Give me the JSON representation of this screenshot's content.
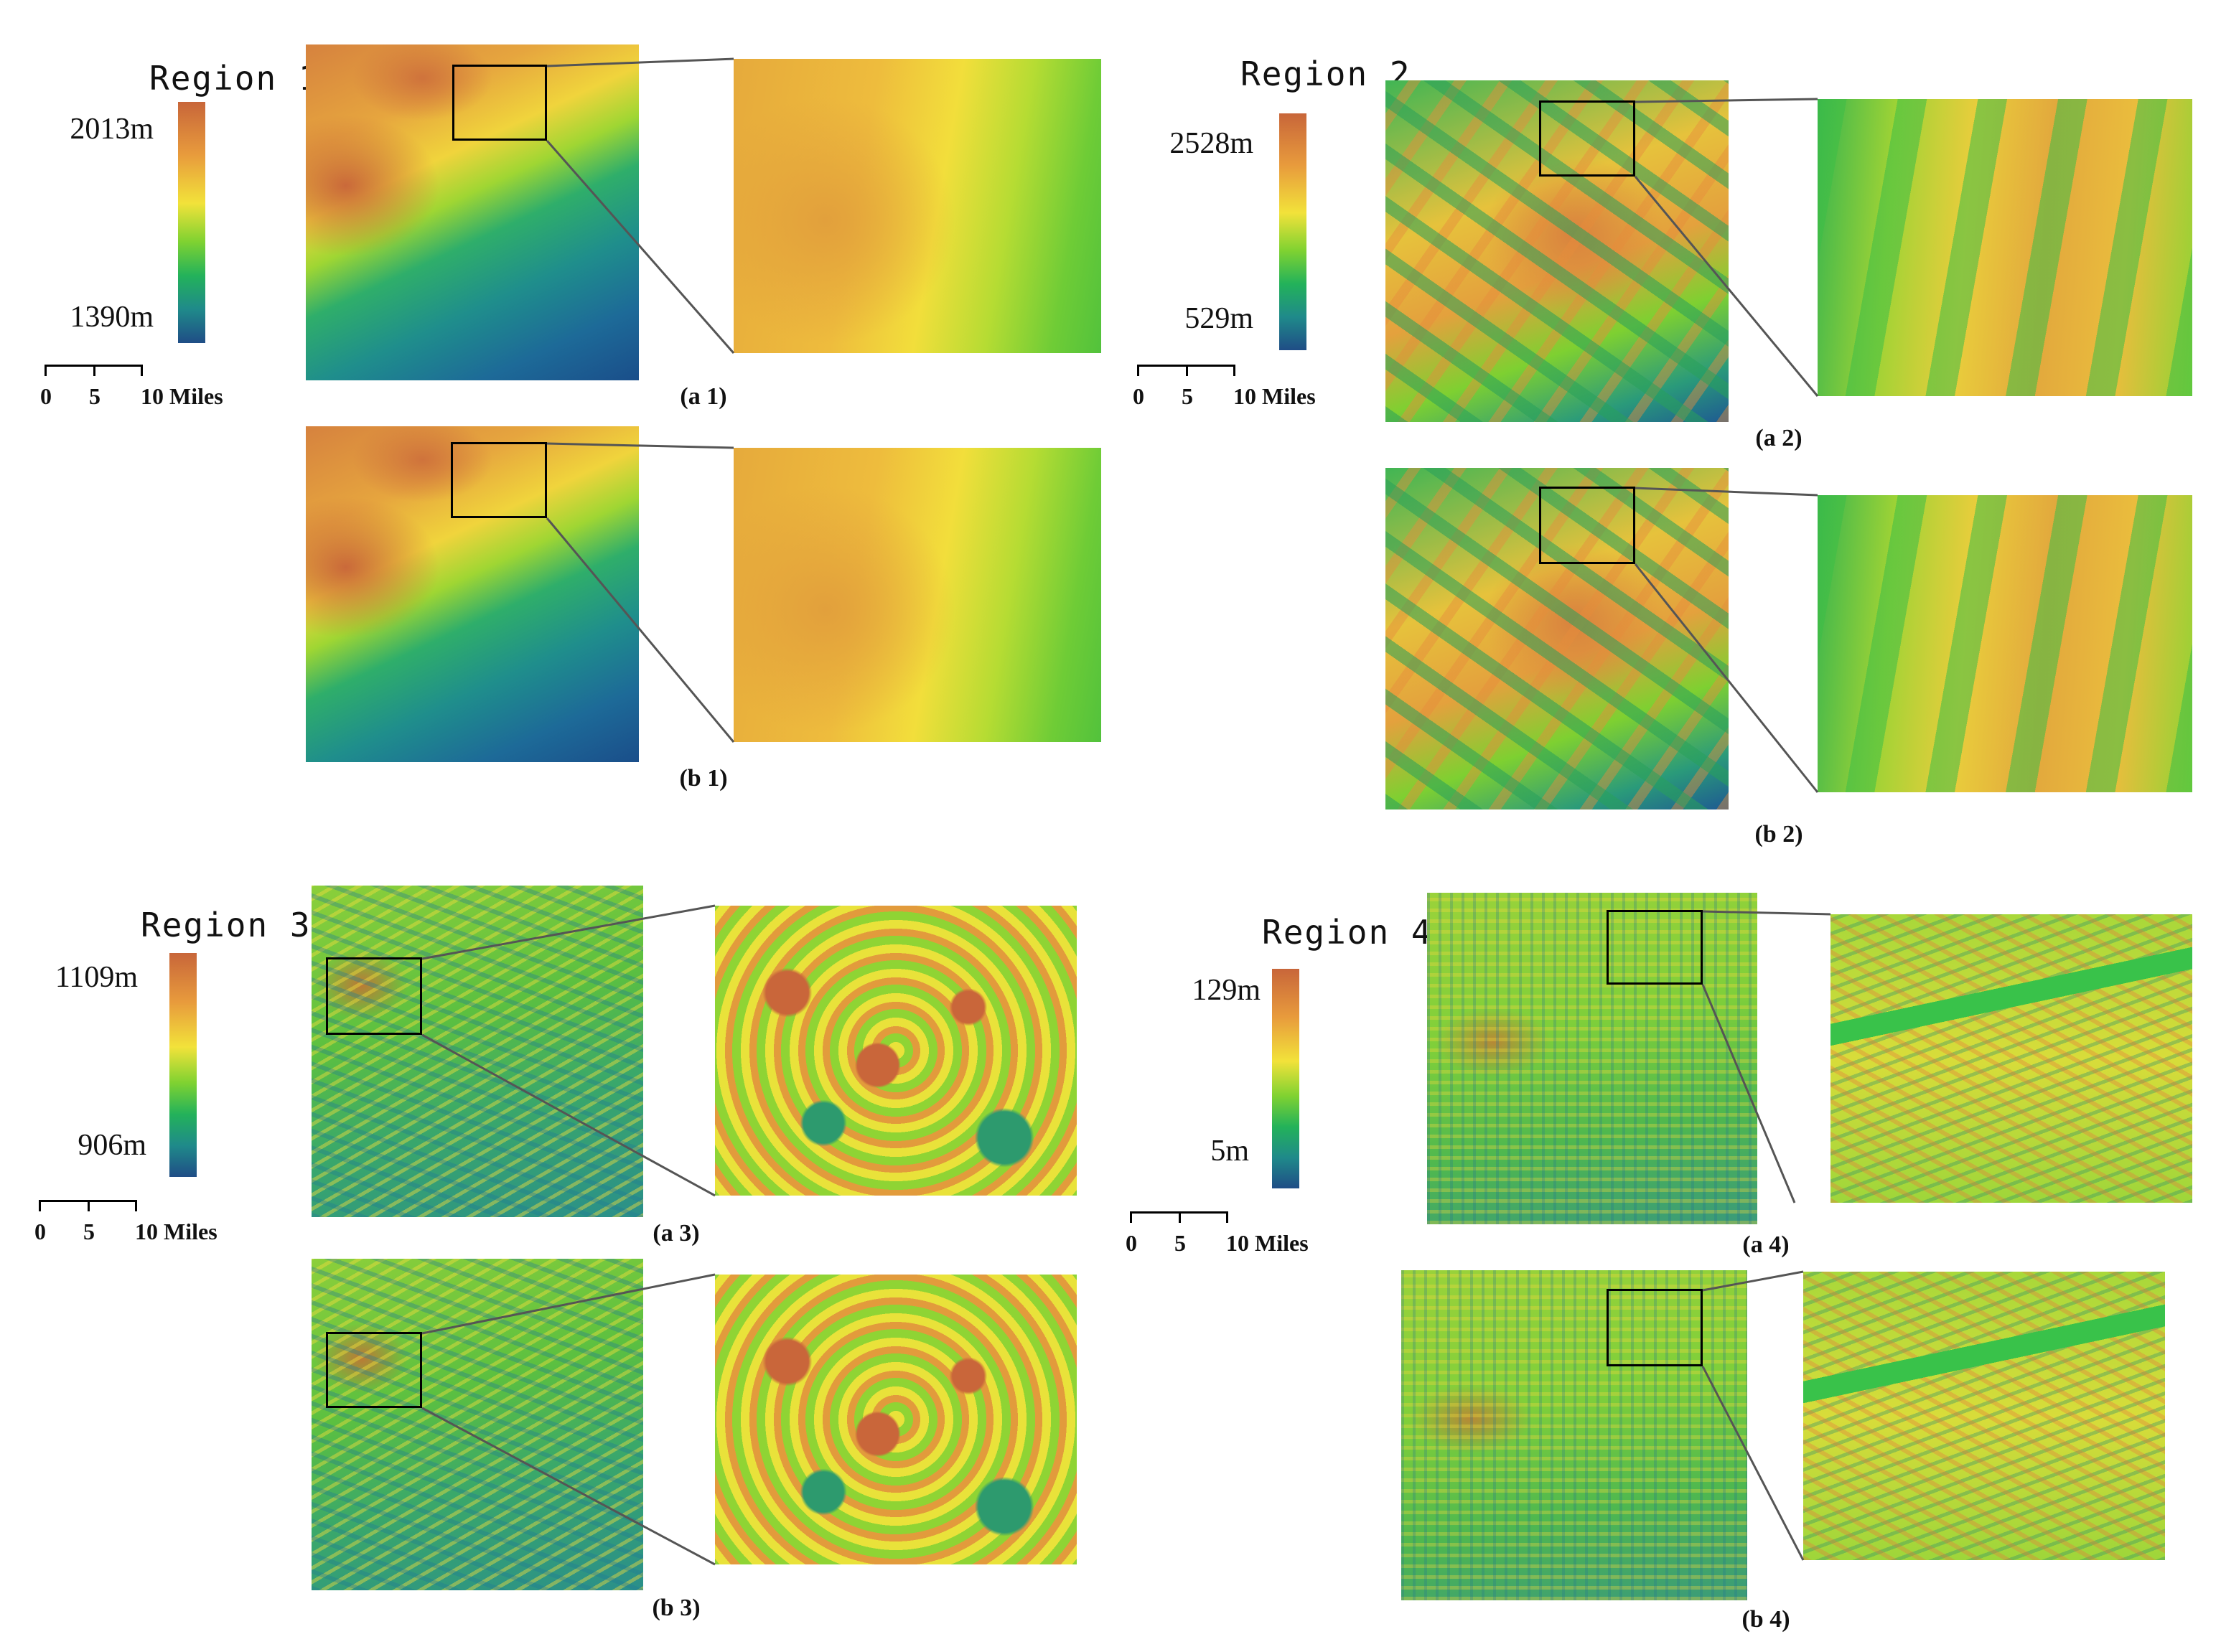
{
  "regions": [
    {
      "title": "Region 1",
      "legend_max": "2013m",
      "legend_min": "1390m",
      "scale": {
        "t0": "0",
        "t1": "5",
        "t2": "10 Miles"
      },
      "caption_a": "(a 1)",
      "caption_b": "(b 1)"
    },
    {
      "title": "Region 2",
      "legend_max": "2528m",
      "legend_min": "529m",
      "scale": {
        "t0": "0",
        "t1": "5",
        "t2": "10 Miles"
      },
      "caption_a": "(a 2)",
      "caption_b": "(b 2)"
    },
    {
      "title": "Region 3",
      "legend_max": "1109m",
      "legend_min": "906m",
      "scale": {
        "t0": "0",
        "t1": "5",
        "t2": "10 Miles"
      },
      "caption_a": "(a 3)",
      "caption_b": "(b 3)"
    },
    {
      "title": "Region 4",
      "legend_max": "129m",
      "legend_min": "5m",
      "scale": {
        "t0": "0",
        "t1": "5",
        "t2": "10 Miles"
      },
      "caption_a": "(a 4)",
      "caption_b": "(b 4)"
    }
  ],
  "colorbar_colors": [
    "#c8663a",
    "#e89b3c",
    "#f2e23a",
    "#7fd231",
    "#23b25a",
    "#1f8a8a",
    "#1f4d86"
  ]
}
